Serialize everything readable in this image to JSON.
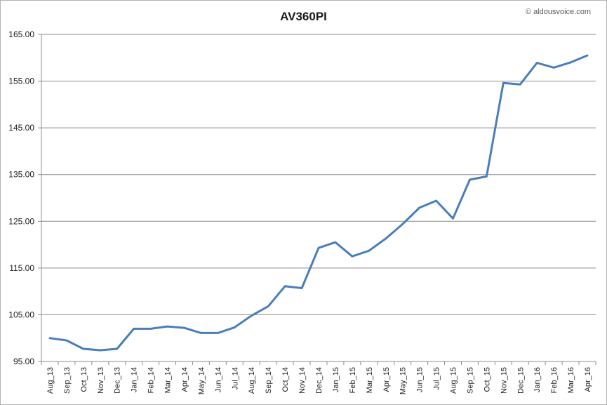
{
  "watermark": "© aldousvoice.com",
  "chart_data": {
    "type": "line",
    "title": "AV360PI",
    "xlabel": "",
    "ylabel": "",
    "ylim": [
      95,
      165
    ],
    "yticks": [
      "95.00",
      "105.00",
      "115.00",
      "125.00",
      "135.00",
      "145.00",
      "155.00",
      "165.00"
    ],
    "grid": "horizontal",
    "legend": "none",
    "line_color": "#4a7ebb",
    "categories": [
      "Aug_13",
      "Sep_13",
      "Oct_13",
      "Nov_13",
      "Dec_13",
      "Jan_14",
      "Feb_14",
      "Mar_14",
      "Apr_14",
      "May_14",
      "Jun_14",
      "Jul_14",
      "Aug_14",
      "Sep_14",
      "Oct_14",
      "Nov_14",
      "Dec_14",
      "Jan_15",
      "Feb_15",
      "Mar_15",
      "Apr_15",
      "May_15",
      "Jun_15",
      "Jul_15",
      "Aug_15",
      "Sep_15",
      "Oct_15",
      "Nov_15",
      "Dec_15",
      "Jan_16",
      "Feb_16",
      "Mar_16",
      "Apr_16"
    ],
    "series": [
      {
        "values": [
          100.0,
          99.5,
          97.7,
          97.4,
          97.7,
          102.0,
          102.0,
          102.5,
          102.2,
          101.1,
          101.1,
          102.3,
          104.8,
          106.8,
          111.1,
          110.7,
          119.3,
          120.5,
          117.5,
          118.7,
          121.3,
          124.4,
          127.9,
          129.4,
          125.6,
          133.9,
          134.6,
          154.6,
          154.3,
          158.9,
          157.9,
          159.0,
          160.5
        ]
      }
    ]
  }
}
